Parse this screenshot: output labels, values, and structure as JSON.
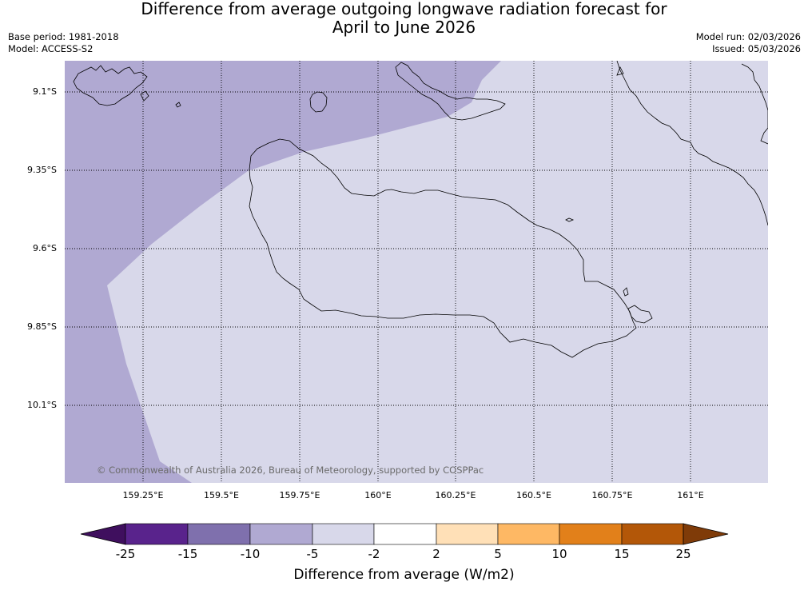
{
  "title_line1": "Difference from average outgoing longwave radiation forecast for",
  "title_line2": "April to June 2026",
  "base_period": "Base period: 1981-2018",
  "model": "Model: ACCESS-S2",
  "model_run": "Model run: 02/03/2026",
  "issued": "Issued: 05/03/2026",
  "copyright": "© Commonwealth of Australia 2026, Bureau of Meteorology, supported by COSPPac",
  "map": {
    "lat_labels": [
      "9.1°S",
      "9.35°S",
      "9.6°S",
      "9.85°S",
      "10.1°S"
    ],
    "lon_labels": [
      "159.25°E",
      "159.5°E",
      "159.75°E",
      "160°E",
      "160.25°E",
      "160.5°E",
      "160.75°E",
      "161°E"
    ]
  },
  "colorbar": {
    "title": "Difference from average (W/m2)",
    "ticks": [
      "-25",
      "-15",
      "-10",
      "-5",
      "-2",
      "2",
      "5",
      "10",
      "15",
      "25"
    ],
    "colors": [
      "#3f0f5e",
      "#59238c",
      "#7f70ad",
      "#b0a9d2",
      "#d8d8ea",
      "#ffffff",
      "#ffe0b7",
      "#feb864",
      "#e2801a",
      "#b35708",
      "#7f3b08"
    ]
  }
}
